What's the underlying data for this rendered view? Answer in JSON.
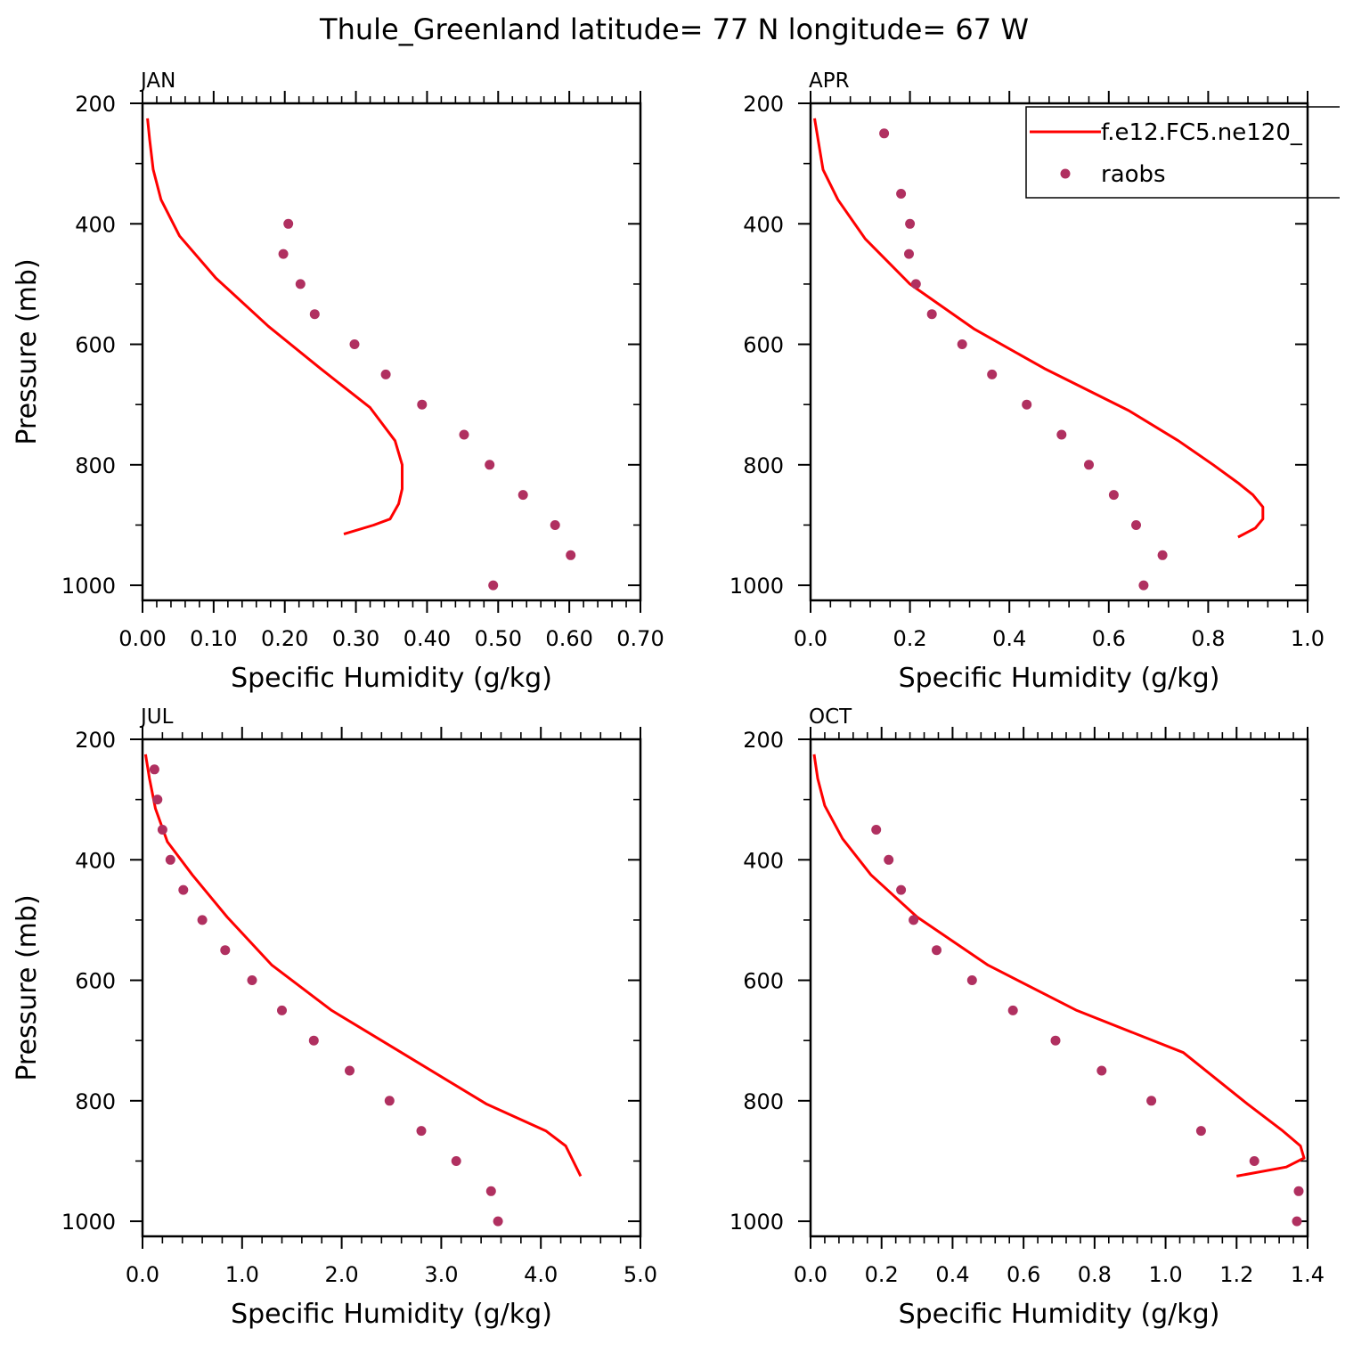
{
  "figure": {
    "title": "Thule_Greenland  latitude= 77 N longitude= 67 W"
  },
  "legend": {
    "model_label": "f.e12.FC5.ne120_",
    "obs_label": "raobs"
  },
  "colors": {
    "model": "#ff0000",
    "obs": "#b03060"
  },
  "chart_data": [
    {
      "type": "line",
      "panel": "JAN",
      "xlabel": "Specific Humidity (g/kg)",
      "ylabel": "Pressure (mb)",
      "xlim": [
        0,
        0.7
      ],
      "ylim": [
        1025,
        200
      ],
      "xticks": [
        0.0,
        0.1,
        0.2,
        0.3,
        0.4,
        0.5,
        0.6,
        0.7
      ],
      "xtick_labels": [
        "0.00",
        "0.10",
        "0.20",
        "0.30",
        "0.40",
        "0.50",
        "0.60",
        "0.70"
      ],
      "yticks": [
        200,
        400,
        600,
        800,
        1000
      ],
      "ytick_labels": [
        "200",
        "400",
        "600",
        "800",
        "1000"
      ],
      "series": [
        {
          "name": "f.e12.FC5.ne120_",
          "kind": "line",
          "x": [
            0.007,
            0.01,
            0.015,
            0.026,
            0.052,
            0.103,
            0.177,
            0.25,
            0.32,
            0.355,
            0.365,
            0.365,
            0.36,
            0.348,
            0.325,
            0.283
          ],
          "y": [
            225,
            260,
            310,
            360,
            420,
            490,
            570,
            640,
            705,
            760,
            800,
            840,
            865,
            890,
            900,
            915
          ]
        },
        {
          "name": "raobs",
          "kind": "scatter",
          "x": [
            0.205,
            0.198,
            0.222,
            0.242,
            0.298,
            0.342,
            0.393,
            0.452,
            0.488,
            0.535,
            0.58,
            0.602,
            0.493
          ],
          "y": [
            400,
            450,
            500,
            550,
            600,
            650,
            700,
            750,
            800,
            850,
            900,
            950,
            1000
          ]
        }
      ]
    },
    {
      "type": "line",
      "panel": "APR",
      "xlabel": "Specific Humidity (g/kg)",
      "ylabel": "",
      "xlim": [
        0,
        1.0
      ],
      "ylim": [
        1025,
        200
      ],
      "xticks": [
        0.0,
        0.2,
        0.4,
        0.6,
        0.8,
        1.0
      ],
      "xtick_labels": [
        "0.0",
        "0.2",
        "0.4",
        "0.6",
        "0.8",
        "1.0"
      ],
      "yticks": [
        200,
        400,
        600,
        800,
        1000
      ],
      "ytick_labels": [
        "200",
        "400",
        "600",
        "800",
        "1000"
      ],
      "series": [
        {
          "name": "f.e12.FC5.ne120_",
          "kind": "line",
          "x": [
            0.008,
            0.015,
            0.025,
            0.055,
            0.11,
            0.2,
            0.33,
            0.47,
            0.64,
            0.74,
            0.81,
            0.86,
            0.89,
            0.91,
            0.91,
            0.895,
            0.86
          ],
          "y": [
            225,
            260,
            310,
            360,
            425,
            500,
            575,
            640,
            710,
            760,
            800,
            830,
            850,
            870,
            890,
            905,
            920
          ]
        },
        {
          "name": "raobs",
          "kind": "scatter",
          "x": [
            0.148,
            0.182,
            0.2,
            0.198,
            0.212,
            0.244,
            0.305,
            0.365,
            0.435,
            0.505,
            0.56,
            0.61,
            0.655,
            0.708,
            0.67
          ],
          "y": [
            250,
            350,
            400,
            450,
            500,
            550,
            600,
            650,
            700,
            750,
            800,
            850,
            900,
            950,
            1000
          ]
        }
      ]
    },
    {
      "type": "line",
      "panel": "JUL",
      "xlabel": "Specific Humidity (g/kg)",
      "ylabel": "Pressure (mb)",
      "xlim": [
        0,
        5.0
      ],
      "ylim": [
        1025,
        200
      ],
      "xticks": [
        0.0,
        1.0,
        2.0,
        3.0,
        4.0,
        5.0
      ],
      "xtick_labels": [
        "0.0",
        "1.0",
        "2.0",
        "3.0",
        "4.0",
        "5.0"
      ],
      "yticks": [
        200,
        400,
        600,
        800,
        1000
      ],
      "ytick_labels": [
        "200",
        "400",
        "600",
        "800",
        "1000"
      ],
      "series": [
        {
          "name": "f.e12.FC5.ne120_",
          "kind": "line",
          "x": [
            0.03,
            0.07,
            0.13,
            0.25,
            0.5,
            0.85,
            1.3,
            1.9,
            2.55,
            3.45,
            4.05,
            4.25,
            4.4
          ],
          "y": [
            225,
            265,
            315,
            370,
            425,
            495,
            575,
            650,
            715,
            805,
            850,
            875,
            925
          ]
        },
        {
          "name": "raobs",
          "kind": "scatter",
          "x": [
            0.12,
            0.15,
            0.2,
            0.28,
            0.41,
            0.6,
            0.83,
            1.1,
            1.4,
            1.72,
            2.08,
            2.48,
            2.8,
            3.15,
            3.5,
            3.57
          ],
          "y": [
            250,
            300,
            350,
            400,
            450,
            500,
            550,
            600,
            650,
            700,
            750,
            800,
            850,
            900,
            950,
            1000
          ]
        }
      ]
    },
    {
      "type": "line",
      "panel": "OCT",
      "xlabel": "Specific Humidity (g/kg)",
      "ylabel": "",
      "xlim": [
        0,
        1.4
      ],
      "ylim": [
        1025,
        200
      ],
      "xticks": [
        0.0,
        0.2,
        0.4,
        0.6,
        0.8,
        1.0,
        1.2,
        1.4
      ],
      "xtick_labels": [
        "0.0",
        "0.2",
        "0.4",
        "0.6",
        "0.8",
        "1.0",
        "1.2",
        "1.4"
      ],
      "yticks": [
        200,
        400,
        600,
        800,
        1000
      ],
      "ytick_labels": [
        "200",
        "400",
        "600",
        "800",
        "1000"
      ],
      "series": [
        {
          "name": "f.e12.FC5.ne120_",
          "kind": "line",
          "x": [
            0.01,
            0.02,
            0.04,
            0.09,
            0.17,
            0.3,
            0.5,
            0.75,
            1.05,
            1.23,
            1.33,
            1.38,
            1.39,
            1.34,
            1.2
          ],
          "y": [
            225,
            265,
            310,
            365,
            425,
            495,
            575,
            650,
            720,
            805,
            850,
            875,
            895,
            910,
            925
          ]
        },
        {
          "name": "raobs",
          "kind": "scatter",
          "x": [
            0.185,
            0.22,
            0.255,
            0.29,
            0.355,
            0.455,
            0.57,
            0.69,
            0.82,
            0.96,
            1.1,
            1.25,
            1.375,
            1.37
          ],
          "y": [
            350,
            400,
            450,
            500,
            550,
            600,
            650,
            700,
            750,
            800,
            850,
            900,
            950,
            1000
          ]
        }
      ]
    }
  ]
}
